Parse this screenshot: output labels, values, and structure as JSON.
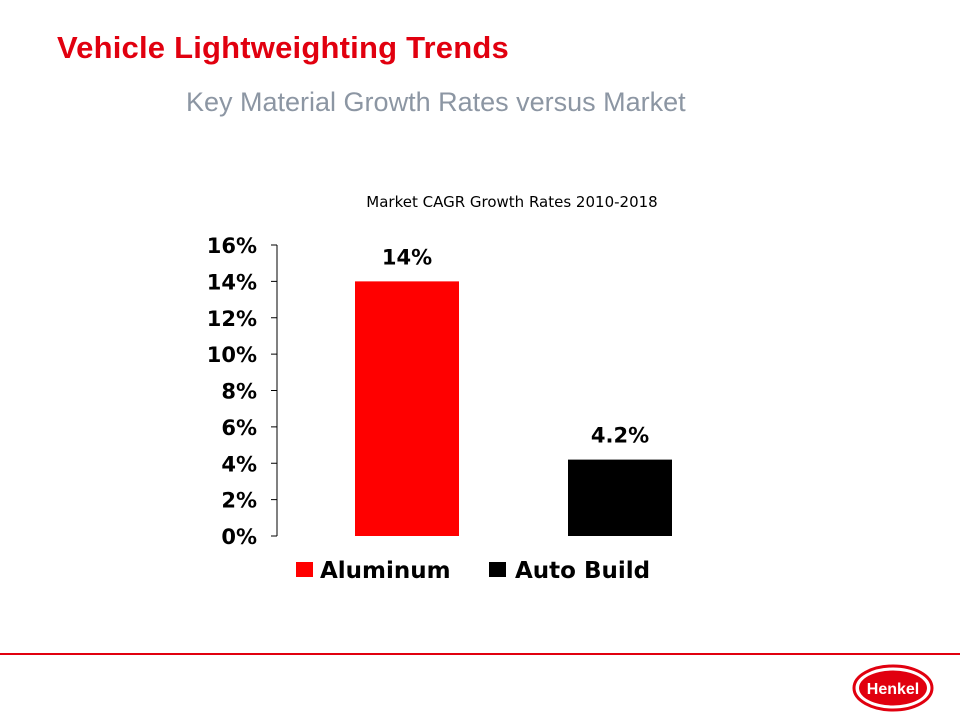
{
  "slide": {
    "title": "Vehicle Lightweighting Trends",
    "subtitle": "Key Material Growth Rates versus Market"
  },
  "chart_data": {
    "type": "bar",
    "title": "Market CAGR Growth Rates 2010-2018",
    "categories": [
      "Aluminum",
      "Auto Build"
    ],
    "values": [
      14,
      4.2
    ],
    "value_labels": [
      "14%",
      "4.2%"
    ],
    "colors": [
      "#ff0000",
      "#000000"
    ],
    "ylim": [
      0,
      16
    ],
    "yticks": [
      "0%",
      "2%",
      "4%",
      "6%",
      "8%",
      "10%",
      "12%",
      "14%",
      "16%"
    ],
    "xlabel": "",
    "ylabel": "",
    "grid": false,
    "legend": {
      "position": "bottom",
      "entries": [
        "Aluminum",
        "Auto Build"
      ]
    }
  },
  "logo": {
    "text": "Henkel",
    "color": "#e1000f"
  }
}
